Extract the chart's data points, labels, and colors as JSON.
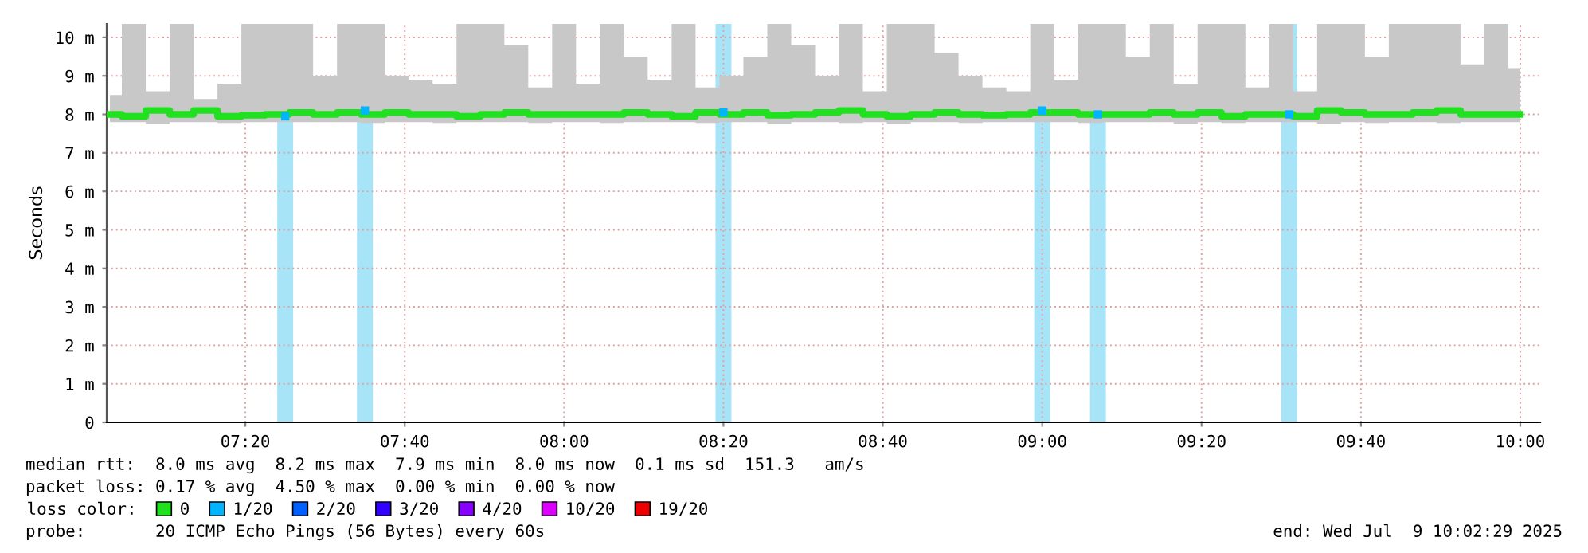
{
  "chart_data": {
    "type": "step",
    "ylabel": "Seconds",
    "xlim": [
      7.0433,
      10.0417
    ],
    "ylim": [
      0,
      10.35
    ],
    "xticks": [
      {
        "value": 7.3333,
        "label": "07:20"
      },
      {
        "value": 7.6667,
        "label": "07:40"
      },
      {
        "value": 8,
        "label": "08:00"
      },
      {
        "value": 8.3333,
        "label": "08:20"
      },
      {
        "value": 8.6667,
        "label": "08:40"
      },
      {
        "value": 9,
        "label": "09:00"
      },
      {
        "value": 9.3333,
        "label": "09:20"
      },
      {
        "value": 9.6667,
        "label": "09:40"
      },
      {
        "value": 10,
        "label": "10:00"
      }
    ],
    "yticks": [
      0,
      {
        "value": 1,
        "label": "1 m"
      },
      {
        "value": 2,
        "label": "2 m"
      },
      {
        "value": 3,
        "label": "3 m"
      },
      {
        "value": 4,
        "label": "4 m"
      },
      {
        "value": 5,
        "label": "5 m"
      },
      {
        "value": 6,
        "label": "6 m"
      },
      {
        "value": 7,
        "label": "7 m"
      },
      {
        "value": 8,
        "label": "8 m"
      },
      {
        "value": 9,
        "label": "9 m"
      },
      {
        "value": 10,
        "label": "10 m"
      }
    ],
    "grid": true,
    "legend": "bottom",
    "legend_title": "loss color:",
    "series": [
      {
        "name": "0",
        "color": "#20e020",
        "x": [
          7.05,
          7.1,
          7.15,
          7.2,
          7.25,
          7.3,
          7.35,
          7.4,
          7.45,
          7.5,
          7.55,
          7.6,
          7.65,
          7.7,
          7.75,
          7.8,
          7.85,
          7.9,
          7.95,
          8.0,
          8.05,
          8.1,
          8.15,
          8.2,
          8.25,
          8.3,
          8.35,
          8.4,
          8.45,
          8.5,
          8.55,
          8.6,
          8.65,
          8.7,
          8.75,
          8.8,
          8.85,
          8.9,
          8.95,
          9.0,
          9.05,
          9.1,
          9.15,
          9.2,
          9.25,
          9.3,
          9.35,
          9.4,
          9.45,
          9.5,
          9.55,
          9.6,
          9.65,
          9.7,
          9.75,
          9.8,
          9.85,
          9.9,
          9.95,
          10.0
        ],
        "values": [
          8.0,
          7.95,
          8.1,
          8.0,
          8.1,
          7.95,
          7.98,
          8.0,
          8.05,
          8.0,
          8.05,
          8.0,
          8.05,
          8.0,
          8.0,
          7.95,
          8.0,
          8.05,
          8.0,
          8.0,
          8.0,
          8.0,
          8.05,
          8.0,
          7.95,
          8.05,
          8.0,
          8.05,
          7.98,
          8.0,
          8.05,
          8.1,
          8.0,
          7.95,
          8.0,
          8.05,
          8.0,
          7.98,
          8.0,
          8.05,
          8.05,
          8.0,
          8.0,
          8.0,
          8.05,
          8.0,
          8.05,
          7.95,
          8.0,
          8.0,
          7.95,
          8.1,
          8.05,
          8.0,
          8.0,
          8.05,
          8.1,
          8.0,
          8.0,
          8.0
        ],
        "lower": [
          7.8,
          7.8,
          7.75,
          7.8,
          7.8,
          7.78,
          7.8,
          7.8,
          7.8,
          7.8,
          7.8,
          7.78,
          7.8,
          7.8,
          7.78,
          7.8,
          7.8,
          7.8,
          7.78,
          7.8,
          7.8,
          7.78,
          7.8,
          7.8,
          7.8,
          7.78,
          7.8,
          7.8,
          7.75,
          7.8,
          7.8,
          7.78,
          7.8,
          7.75,
          7.8,
          7.8,
          7.78,
          7.8,
          7.8,
          7.8,
          7.8,
          7.78,
          7.8,
          7.8,
          7.8,
          7.75,
          7.8,
          7.78,
          7.8,
          7.8,
          7.8,
          7.75,
          7.8,
          7.78,
          7.8,
          7.8,
          7.78,
          7.8,
          7.8,
          7.8
        ],
        "upper": [
          8.5,
          10.35,
          8.6,
          10.35,
          8.4,
          8.8,
          10.35,
          10.35,
          10.35,
          9.0,
          10.35,
          10.35,
          9.0,
          8.9,
          8.8,
          10.35,
          10.35,
          9.8,
          8.7,
          10.35,
          8.8,
          10.35,
          9.5,
          8.9,
          10.35,
          8.7,
          9.0,
          9.5,
          10.35,
          9.8,
          9.0,
          10.35,
          8.6,
          10.35,
          10.35,
          9.6,
          9.0,
          8.7,
          8.6,
          10.35,
          8.9,
          10.35,
          10.35,
          9.5,
          10.35,
          8.8,
          10.35,
          10.35,
          8.7,
          10.35,
          8.6,
          10.35,
          10.35,
          9.5,
          10.35,
          10.35,
          10.35,
          9.3,
          10.35,
          9.2
        ]
      },
      {
        "name": "1/20",
        "color": "#00b4ff",
        "type": "scatter",
        "marker": "square",
        "x": [
          7.4167,
          7.5833,
          8.3333,
          9.0,
          9.1167,
          9.5167
        ],
        "values": [
          7.95,
          8.1,
          8.05,
          8.1,
          8.0,
          8.0
        ]
      },
      {
        "name": "2/20",
        "color": "#0060ff"
      },
      {
        "name": "3/20",
        "color": "#3300ff"
      },
      {
        "name": "4/20",
        "color": "#8800ff"
      },
      {
        "name": "10/20",
        "color": "#dd00ff"
      },
      {
        "name": "19/20",
        "color": "#ee0000"
      }
    ],
    "bands": [
      {
        "axis": "x",
        "from": 7.4,
        "to": 7.4333,
        "color": "#a8e4f8"
      },
      {
        "axis": "x",
        "from": 7.5667,
        "to": 7.6,
        "color": "#a8e4f8"
      },
      {
        "axis": "x",
        "from": 8.3167,
        "to": 8.35,
        "color": "#a8e4f8"
      },
      {
        "axis": "x",
        "from": 8.9833,
        "to": 9.0167,
        "color": "#a8e4f8"
      },
      {
        "axis": "x",
        "from": 9.1,
        "to": 9.1333,
        "color": "#a8e4f8"
      },
      {
        "axis": "x",
        "from": 9.5,
        "to": 9.5333,
        "color": "#a8e4f8"
      }
    ],
    "annotations": [
      "median rtt:  8.0 ms avg  8.2 ms max  7.9 ms min  8.0 ms now  0.1 ms sd  151.3   am/s",
      "packet loss: 0.17 % avg  4.50 % max  0.00 % min  0.00 % now",
      "probe:       20 ICMP Echo Pings (56 Bytes) every 60s",
      "end: Wed Jul  9 10:02:29 2025"
    ]
  }
}
